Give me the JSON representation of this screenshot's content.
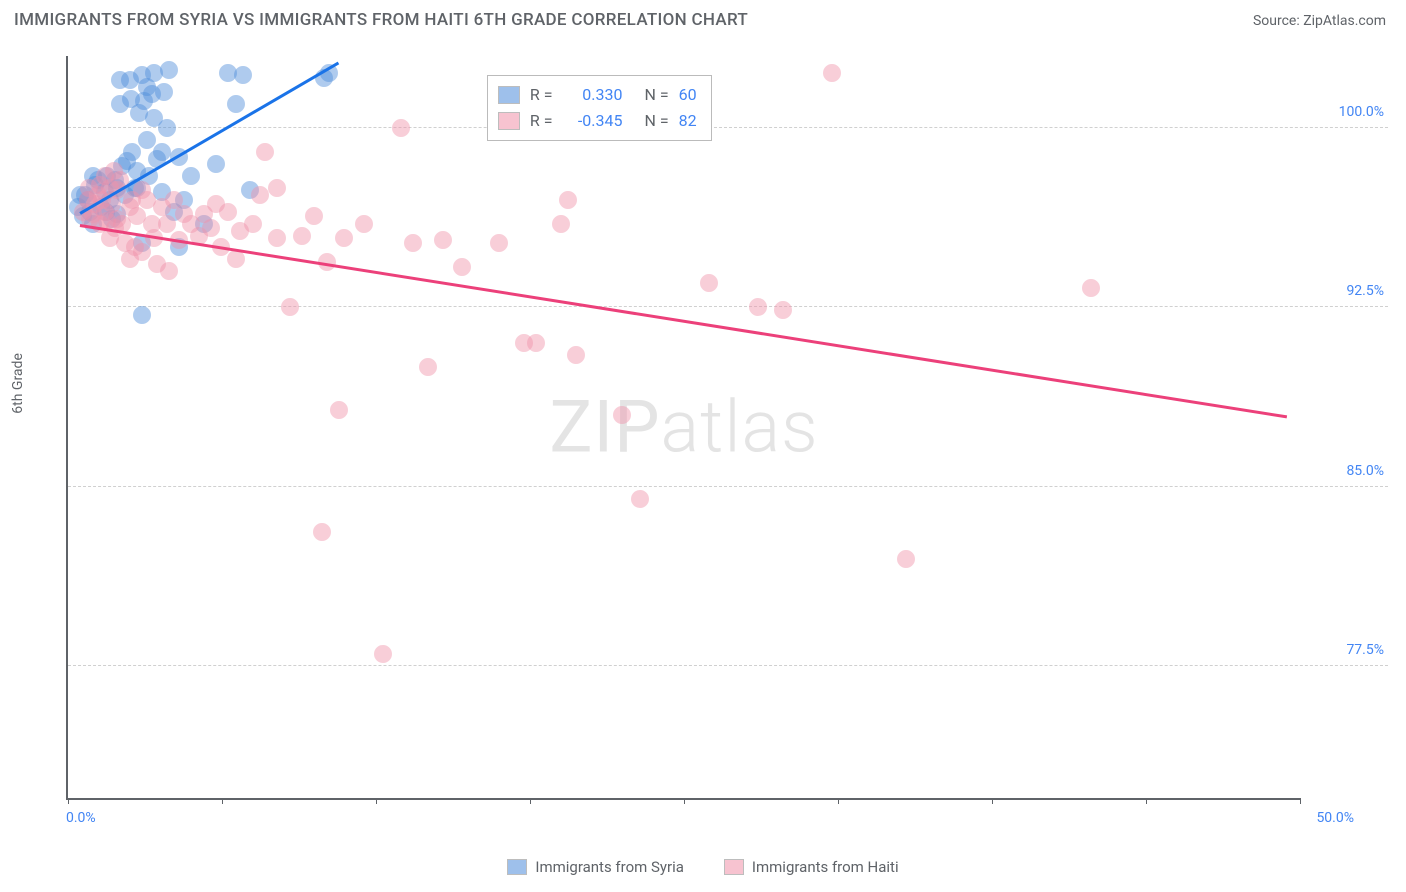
{
  "header": {
    "title": "IMMIGRANTS FROM SYRIA VS IMMIGRANTS FROM HAITI 6TH GRADE CORRELATION CHART",
    "source_prefix": "Source: ",
    "source_name": "ZipAtlas.com"
  },
  "chart": {
    "type": "scatter",
    "ylabel": "6th Grade",
    "xlim": [
      0,
      50
    ],
    "ylim": [
      72,
      103
    ],
    "xtick_positions": [
      0,
      6.25,
      12.5,
      18.75,
      25,
      31.25,
      37.5,
      43.75,
      50
    ],
    "xtick_labels_show": false,
    "xmin_label": "0.0%",
    "xmax_label": "50.0%",
    "ytick_positions": [
      77.5,
      85.0,
      92.5,
      100.0
    ],
    "ytick_labels": [
      "77.5%",
      "85.0%",
      "92.5%",
      "100.0%"
    ],
    "grid_color": "#d0d0d0",
    "axis_color": "#5f6368",
    "background_color": "#ffffff",
    "marker_radius": 9,
    "marker_opacity": 0.45,
    "marker_stroke_opacity": 0.8,
    "line_width": 2.5,
    "watermark": "ZIPatlas",
    "series": [
      {
        "name": "Immigrants from Syria",
        "color": "#4f8edb",
        "line_color": "#1a73e8",
        "r_label": "R =",
        "r_value": "0.330",
        "n_label": "N =",
        "n_value": "60",
        "trend": {
          "x1": 0.5,
          "y1": 96.5,
          "x2": 11.0,
          "y2": 102.8
        },
        "points": [
          [
            0.4,
            96.7
          ],
          [
            0.5,
            97.2
          ],
          [
            0.6,
            96.3
          ],
          [
            0.7,
            97.2
          ],
          [
            0.8,
            97.0
          ],
          [
            0.9,
            96.5
          ],
          [
            1.0,
            96.0
          ],
          [
            1.1,
            97.6
          ],
          [
            1.0,
            98.0
          ],
          [
            1.2,
            97.8
          ],
          [
            1.35,
            96.7
          ],
          [
            1.5,
            97.3
          ],
          [
            1.55,
            96.5
          ],
          [
            1.6,
            98.0
          ],
          [
            1.7,
            97.0
          ],
          [
            1.8,
            96.2
          ],
          [
            1.9,
            97.8
          ],
          [
            2.0,
            97.5
          ],
          [
            2.1,
            101.0
          ],
          [
            2.1,
            102.0
          ],
          [
            2.2,
            98.4
          ],
          [
            2.0,
            96.4
          ],
          [
            2.3,
            97.2
          ],
          [
            2.4,
            98.6
          ],
          [
            2.5,
            102.0
          ],
          [
            2.55,
            101.2
          ],
          [
            2.6,
            99.0
          ],
          [
            2.7,
            97.5
          ],
          [
            2.8,
            97.5
          ],
          [
            2.8,
            98.2
          ],
          [
            2.9,
            100.6
          ],
          [
            3.0,
            95.2
          ],
          [
            3.0,
            102.2
          ],
          [
            3.1,
            101.1
          ],
          [
            3.2,
            99.5
          ],
          [
            3.2,
            101.7
          ],
          [
            3.3,
            98.0
          ],
          [
            3.0,
            92.2
          ],
          [
            3.4,
            101.4
          ],
          [
            3.5,
            100.4
          ],
          [
            3.5,
            102.3
          ],
          [
            3.6,
            98.7
          ],
          [
            3.8,
            99.0
          ],
          [
            3.8,
            97.3
          ],
          [
            3.9,
            101.5
          ],
          [
            4.0,
            100.0
          ],
          [
            4.1,
            102.4
          ],
          [
            4.3,
            96.5
          ],
          [
            4.5,
            95.0
          ],
          [
            4.5,
            98.8
          ],
          [
            4.7,
            97.0
          ],
          [
            5.0,
            98.0
          ],
          [
            5.5,
            96.0
          ],
          [
            6.0,
            98.5
          ],
          [
            6.5,
            102.3
          ],
          [
            6.8,
            101.0
          ],
          [
            7.1,
            102.2
          ],
          [
            7.4,
            97.4
          ],
          [
            10.4,
            102.1
          ],
          [
            10.6,
            102.3
          ]
        ]
      },
      {
        "name": "Immigrants from Haiti",
        "color": "#f193ab",
        "line_color": "#ec407a",
        "r_label": "R =",
        "r_value": "-0.345",
        "n_label": "N =",
        "n_value": "82",
        "trend": {
          "x1": 0.5,
          "y1": 96.0,
          "x2": 49.5,
          "y2": 88.0
        },
        "points": [
          [
            0.6,
            96.5
          ],
          [
            0.8,
            97.0
          ],
          [
            0.85,
            97.5
          ],
          [
            0.9,
            96.2
          ],
          [
            1.0,
            96.4
          ],
          [
            1.1,
            96.8
          ],
          [
            1.2,
            97.2
          ],
          [
            1.3,
            96.0
          ],
          [
            1.3,
            97.6
          ],
          [
            1.4,
            97.0
          ],
          [
            1.5,
            98.0
          ],
          [
            1.5,
            96.5
          ],
          [
            1.6,
            96.1
          ],
          [
            1.7,
            97.5
          ],
          [
            1.7,
            95.4
          ],
          [
            1.8,
            96.8
          ],
          [
            1.85,
            98.2
          ],
          [
            1.9,
            95.8
          ],
          [
            2.0,
            96.2
          ],
          [
            2.0,
            97.4
          ],
          [
            2.1,
            97.8
          ],
          [
            2.2,
            96.0
          ],
          [
            2.3,
            95.2
          ],
          [
            2.5,
            96.7
          ],
          [
            2.5,
            94.5
          ],
          [
            2.6,
            97.0
          ],
          [
            2.7,
            95.0
          ],
          [
            2.8,
            96.3
          ],
          [
            3.0,
            94.8
          ],
          [
            3.0,
            97.4
          ],
          [
            3.2,
            97.0
          ],
          [
            3.4,
            96.0
          ],
          [
            3.5,
            95.4
          ],
          [
            3.6,
            94.3
          ],
          [
            3.8,
            96.7
          ],
          [
            4.0,
            96.0
          ],
          [
            4.1,
            94.0
          ],
          [
            4.3,
            97.0
          ],
          [
            4.5,
            95.3
          ],
          [
            4.7,
            96.4
          ],
          [
            5.0,
            96.0
          ],
          [
            5.3,
            95.5
          ],
          [
            5.5,
            96.4
          ],
          [
            5.8,
            95.8
          ],
          [
            6.0,
            96.8
          ],
          [
            6.2,
            95.0
          ],
          [
            6.5,
            96.5
          ],
          [
            6.8,
            94.5
          ],
          [
            7.0,
            95.7
          ],
          [
            7.5,
            96.0
          ],
          [
            7.8,
            97.2
          ],
          [
            8.0,
            99.0
          ],
          [
            8.5,
            95.4
          ],
          [
            8.5,
            97.5
          ],
          [
            9.0,
            92.5
          ],
          [
            9.5,
            95.5
          ],
          [
            10.0,
            96.3
          ],
          [
            10.3,
            83.1
          ],
          [
            10.5,
            94.4
          ],
          [
            11.0,
            88.2
          ],
          [
            11.2,
            95.4
          ],
          [
            12.0,
            96.0
          ],
          [
            12.8,
            78.0
          ],
          [
            13.5,
            100.0
          ],
          [
            14.0,
            95.2
          ],
          [
            14.6,
            90.0
          ],
          [
            15.2,
            95.3
          ],
          [
            16.0,
            94.2
          ],
          [
            17.5,
            95.2
          ],
          [
            18.5,
            91.0
          ],
          [
            19.0,
            91.0
          ],
          [
            20.0,
            96.0
          ],
          [
            20.3,
            97.0
          ],
          [
            20.6,
            90.5
          ],
          [
            22.5,
            88.0
          ],
          [
            23.2,
            84.5
          ],
          [
            26.0,
            93.5
          ],
          [
            28.0,
            92.5
          ],
          [
            29.0,
            92.4
          ],
          [
            31.0,
            102.3
          ],
          [
            34.0,
            82.0
          ],
          [
            41.5,
            93.3
          ]
        ]
      }
    ],
    "legend_box": {
      "left_pct": 34,
      "top_pct": 2.5
    },
    "bottom_legend": [
      {
        "color": "#4f8edb",
        "label": "Immigrants from Syria"
      },
      {
        "color": "#f193ab",
        "label": "Immigrants from Haiti"
      }
    ]
  }
}
